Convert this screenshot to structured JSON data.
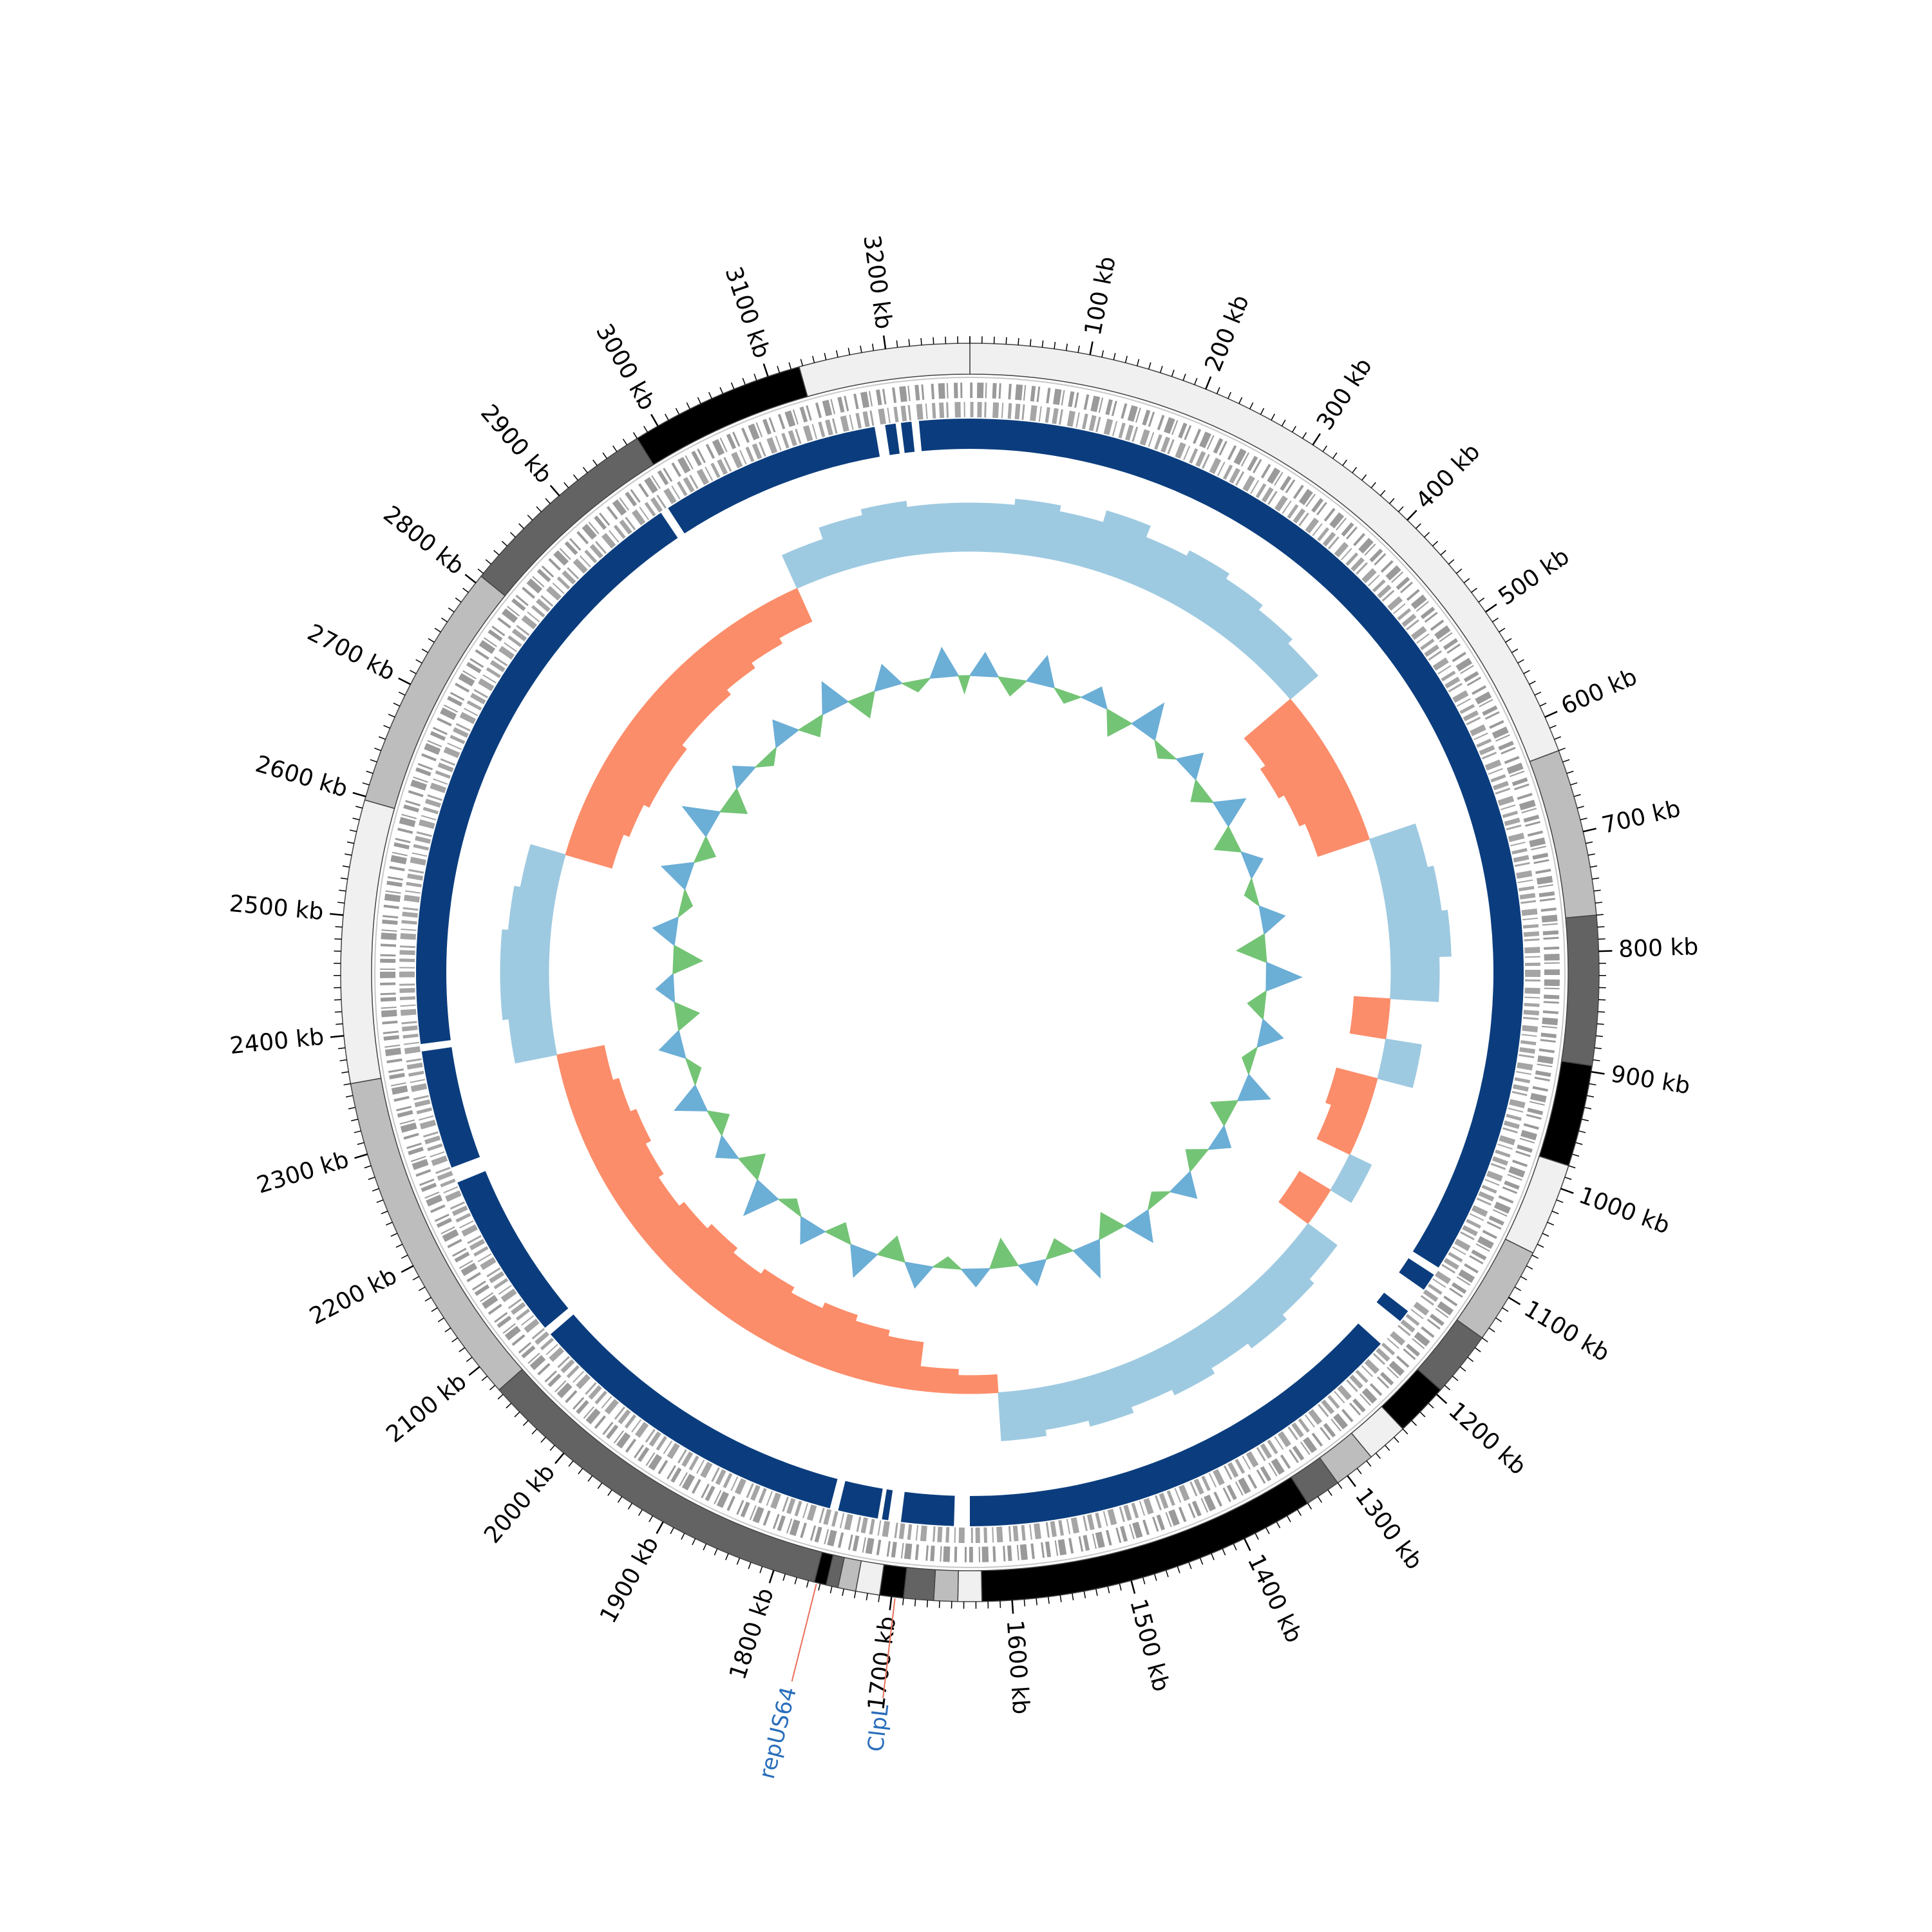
{
  "chart_data": {
    "type": "circos",
    "xlim": [
      0,
      3270
    ],
    "ticks": [
      {
        "value": 100,
        "label": "100 kb"
      },
      {
        "value": 200,
        "label": "200 kb"
      },
      {
        "value": 300,
        "label": "300 kb"
      },
      {
        "value": 400,
        "label": "400 kb"
      },
      {
        "value": 500,
        "label": "500 kb"
      },
      {
        "value": 600,
        "label": "600 kb"
      },
      {
        "value": 700,
        "label": "700 kb"
      },
      {
        "value": 800,
        "label": "800 kb"
      },
      {
        "value": 900,
        "label": "900 kb"
      },
      {
        "value": 1000,
        "label": "1000 kb"
      },
      {
        "value": 1100,
        "label": "1100 kb"
      },
      {
        "value": 1200,
        "label": "1200 kb"
      },
      {
        "value": 1300,
        "label": "1300 kb"
      },
      {
        "value": 1400,
        "label": "1400 kb"
      },
      {
        "value": 1500,
        "label": "1500 kb"
      },
      {
        "value": 1600,
        "label": "1600 kb"
      },
      {
        "value": 1700,
        "label": "1700 kb"
      },
      {
        "value": 1800,
        "label": "1800 kb"
      },
      {
        "value": 1900,
        "label": "1900 kb"
      },
      {
        "value": 2000,
        "label": "2000 kb"
      },
      {
        "value": 2100,
        "label": "2100 kb"
      },
      {
        "value": 2200,
        "label": "2200 kb"
      },
      {
        "value": 2300,
        "label": "2300 kb"
      },
      {
        "value": 2400,
        "label": "2400 kb"
      },
      {
        "value": 2500,
        "label": "2500 kb"
      },
      {
        "value": 2600,
        "label": "2600 kb"
      },
      {
        "value": 2700,
        "label": "2700 kb"
      },
      {
        "value": 2800,
        "label": "2800 kb"
      },
      {
        "value": 2900,
        "label": "2900 kb"
      },
      {
        "value": 3000,
        "label": "3000 kb"
      },
      {
        "value": 3100,
        "label": "3100 kb"
      },
      {
        "value": 3200,
        "label": "3200 kb"
      }
    ],
    "minor_tick_step": 10,
    "contigs": {
      "starts": [
        0,
        630,
        770,
        895,
        980,
        1058,
        1140,
        1195,
        1240,
        1275,
        1310,
        1340,
        1625,
        1645,
        1665,
        1690,
        1710,
        1730,
        1745,
        1755,
        1765,
        2075,
        2360,
        2597,
        2807,
        2980,
        3127
      ],
      "ends": [
        630,
        770,
        895,
        980,
        1058,
        1140,
        1195,
        1240,
        1275,
        1310,
        1340,
        1625,
        1645,
        1665,
        1690,
        1710,
        1730,
        1745,
        1755,
        1765,
        2075,
        2360,
        2597,
        2807,
        2980,
        3127,
        3270
      ],
      "colors": [
        "#f0f0f0",
        "#bdbdbd",
        "#636363",
        "#000000",
        "#f0f0f0",
        "#bdbdbd",
        "#636363",
        "#000000",
        "#f0f0f0",
        "#bdbdbd",
        "#636363",
        "#000000",
        "#f0f0f0",
        "#bdbdbd",
        "#636363",
        "#000000",
        "#f0f0f0",
        "#bdbdbd",
        "#636363",
        "#000000",
        "#636363",
        "#bdbdbd",
        "#f0f0f0",
        "#bdbdbd",
        "#636363",
        "#000000",
        "#f0f0f0"
      ]
    },
    "coverage": {
      "color": "#0b3d7e",
      "starts": [
        0,
        1118,
        1160,
        1200,
        1650,
        1712,
        1722,
        1768,
        2090,
        2265,
        2385,
        2970,
        3190,
        3205,
        3222
      ],
      "ends": [
        1110,
        1135,
        1172,
        1635,
        1700,
        1718,
        1760,
        2082,
        2250,
        2378,
        2962,
        3180,
        3200,
        3215,
        3270
      ]
    },
    "x": [
      0,
      50,
      100,
      150,
      200,
      250,
      300,
      350,
      400,
      450,
      500,
      550,
      600,
      650,
      700,
      750,
      800,
      850,
      900,
      950,
      1000,
      1050,
      1100,
      1150,
      1200,
      1250,
      1300,
      1350,
      1400,
      1450,
      1500,
      1550,
      1600,
      1650,
      1700,
      1750,
      1800,
      1850,
      1900,
      1950,
      2000,
      2050,
      2100,
      2150,
      2200,
      2250,
      2300,
      2350,
      2400,
      2450,
      2500,
      2550,
      2600,
      2650,
      2700,
      2750,
      2800,
      2850,
      2900,
      2950,
      3000,
      3050,
      3100,
      3150,
      3200,
      3250
    ],
    "series": [
      {
        "colors": [
          "#9ecae1",
          "#fc8d6a"
        ],
        "ylim": [
          -0.08,
          0.08
        ],
        "values": [
          0.04,
          0.045,
          0.04,
          0.05,
          0.04,
          0.045,
          0.04,
          0.035,
          0.03,
          -0.05,
          -0.055,
          -0.05,
          -0.045,
          0.04,
          0.045,
          0.05,
          0.04,
          -0.03,
          0.03,
          -0.035,
          -0.03,
          0.02,
          -0.03,
          0.03,
          0.035,
          0.04,
          0.035,
          0.04,
          0.035,
          0.04,
          0.035,
          0.04,
          -0.015,
          -0.02,
          -0.04,
          -0.045,
          -0.05,
          -0.045,
          -0.05,
          -0.045,
          -0.05,
          -0.045,
          -0.04,
          -0.045,
          -0.05,
          -0.045,
          -0.04,
          0.035,
          0.04,
          0.04,
          0.035,
          0.03,
          -0.04,
          -0.045,
          -0.05,
          -0.05,
          -0.045,
          -0.045,
          -0.04,
          -0.035,
          -0.03,
          0.03,
          0.04,
          0.045,
          0.04,
          0.04
        ]
      },
      {
        "colors": [
          "#6baed6",
          "#74c476"
        ],
        "ylim": [
          -0.05,
          0.05
        ],
        "values": [
          0.02,
          -0.015,
          0.025,
          -0.01,
          0.015,
          -0.02,
          0.03,
          -0.01,
          0.02,
          -0.015,
          0.025,
          -0.02,
          0.015,
          -0.01,
          0.02,
          -0.025,
          0.03,
          -0.015,
          0.02,
          -0.01,
          0.025,
          -0.02,
          0.015,
          -0.015,
          0.02,
          -0.01,
          0.025,
          -0.02,
          0.03,
          -0.015,
          0.02,
          -0.025,
          0.015,
          -0.01,
          0.02,
          -0.02,
          0.025,
          -0.015,
          0.02,
          -0.01,
          0.03,
          -0.02,
          0.015,
          -0.015,
          0.025,
          -0.01,
          0.02,
          -0.02,
          0.015,
          -0.025,
          0.02,
          -0.01,
          0.025,
          -0.015,
          0.03,
          -0.02,
          0.015,
          -0.01,
          0.02,
          -0.015,
          0.025,
          -0.02,
          0.02,
          -0.01,
          0.025,
          -0.015
        ]
      }
    ],
    "annotations": [
      {
        "label": "repUS64",
        "position": 1763,
        "color": "#2a6ebb",
        "line_color": "#e8705a"
      },
      {
        "label": "ClpL",
        "position": 1697,
        "color": "#2a6ebb",
        "line_color": "#e8705a"
      }
    ]
  }
}
